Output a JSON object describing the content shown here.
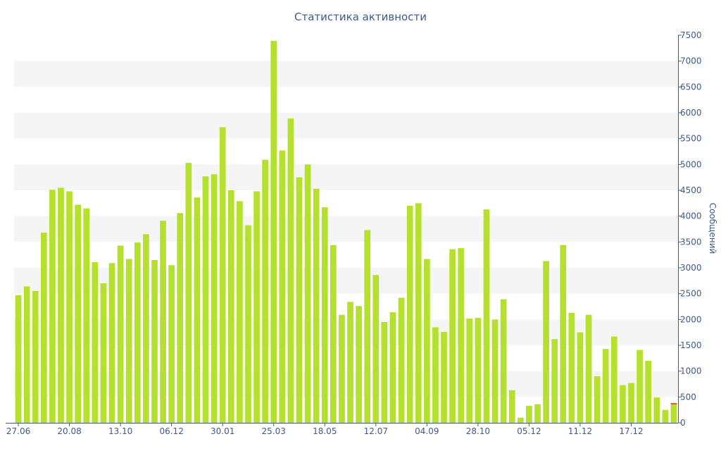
{
  "chart_data": {
    "type": "bar",
    "title": "Статистика активности",
    "ylabel": "Сообщений",
    "xlabel": "",
    "ylim": [
      0,
      7500
    ],
    "y_ticks": [
      0,
      500,
      1000,
      1500,
      2000,
      2500,
      3000,
      3500,
      4000,
      4500,
      5000,
      5500,
      6000,
      6500,
      7000,
      7500
    ],
    "y_axis_position": "right",
    "grid": "alternating horizontal bands",
    "x_tick_labels": [
      {
        "index": 0,
        "label": "27.06"
      },
      {
        "index": 6,
        "label": "20.08"
      },
      {
        "index": 12,
        "label": "13.10"
      },
      {
        "index": 18,
        "label": "06.12"
      },
      {
        "index": 24,
        "label": "30.01"
      },
      {
        "index": 30,
        "label": "25.03"
      },
      {
        "index": 36,
        "label": "18.05"
      },
      {
        "index": 42,
        "label": "12.07"
      },
      {
        "index": 48,
        "label": "04.09"
      },
      {
        "index": 54,
        "label": "28.10"
      },
      {
        "index": 60,
        "label": "05.12"
      },
      {
        "index": 66,
        "label": "11.12"
      },
      {
        "index": 72,
        "label": "17.12"
      }
    ],
    "values": [
      2470,
      2640,
      2550,
      3680,
      4510,
      4550,
      4480,
      4220,
      4150,
      3110,
      2700,
      3090,
      3430,
      3170,
      3490,
      3650,
      3150,
      3910,
      3050,
      4060,
      5030,
      4360,
      4770,
      4810,
      5720,
      4500,
      4290,
      3820,
      4480,
      5090,
      7390,
      5270,
      5890,
      4750,
      5000,
      4530,
      4170,
      3440,
      2090,
      2340,
      2260,
      3730,
      2860,
      1950,
      2140,
      2420,
      4200,
      4250,
      3170,
      1850,
      1760,
      3360,
      3380,
      2020,
      2030,
      4130,
      2000,
      2390,
      630,
      100,
      330,
      360,
      3130,
      1620,
      3440,
      2130,
      1750,
      2090,
      900,
      1430,
      1670,
      730,
      770,
      1410,
      1200,
      490,
      250,
      370
    ],
    "bar_color": "#b5e02e",
    "highlight_color": "#d9534f",
    "axis_color": "#3d5a8a",
    "band_color": "#f5f5f5"
  }
}
